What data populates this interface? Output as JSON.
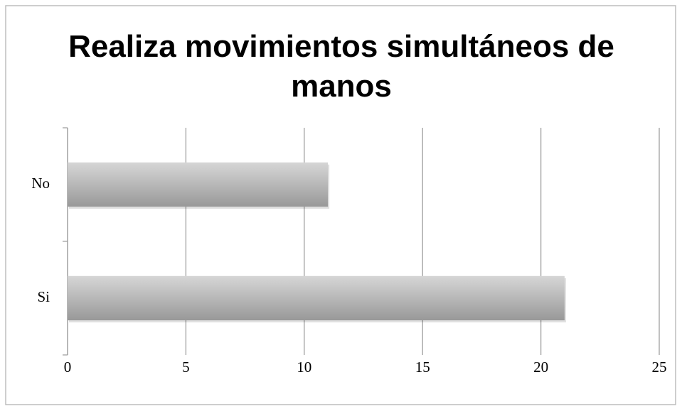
{
  "chart_data": {
    "type": "hbar",
    "title": "Realiza movimientos simultáneos de manos",
    "categories": [
      "No",
      "Si"
    ],
    "values": [
      11,
      21
    ],
    "color": "#b0b0b0",
    "xlim": [
      0,
      25
    ],
    "xticks": [
      0,
      5,
      10,
      15,
      20,
      25
    ],
    "grid": true
  }
}
